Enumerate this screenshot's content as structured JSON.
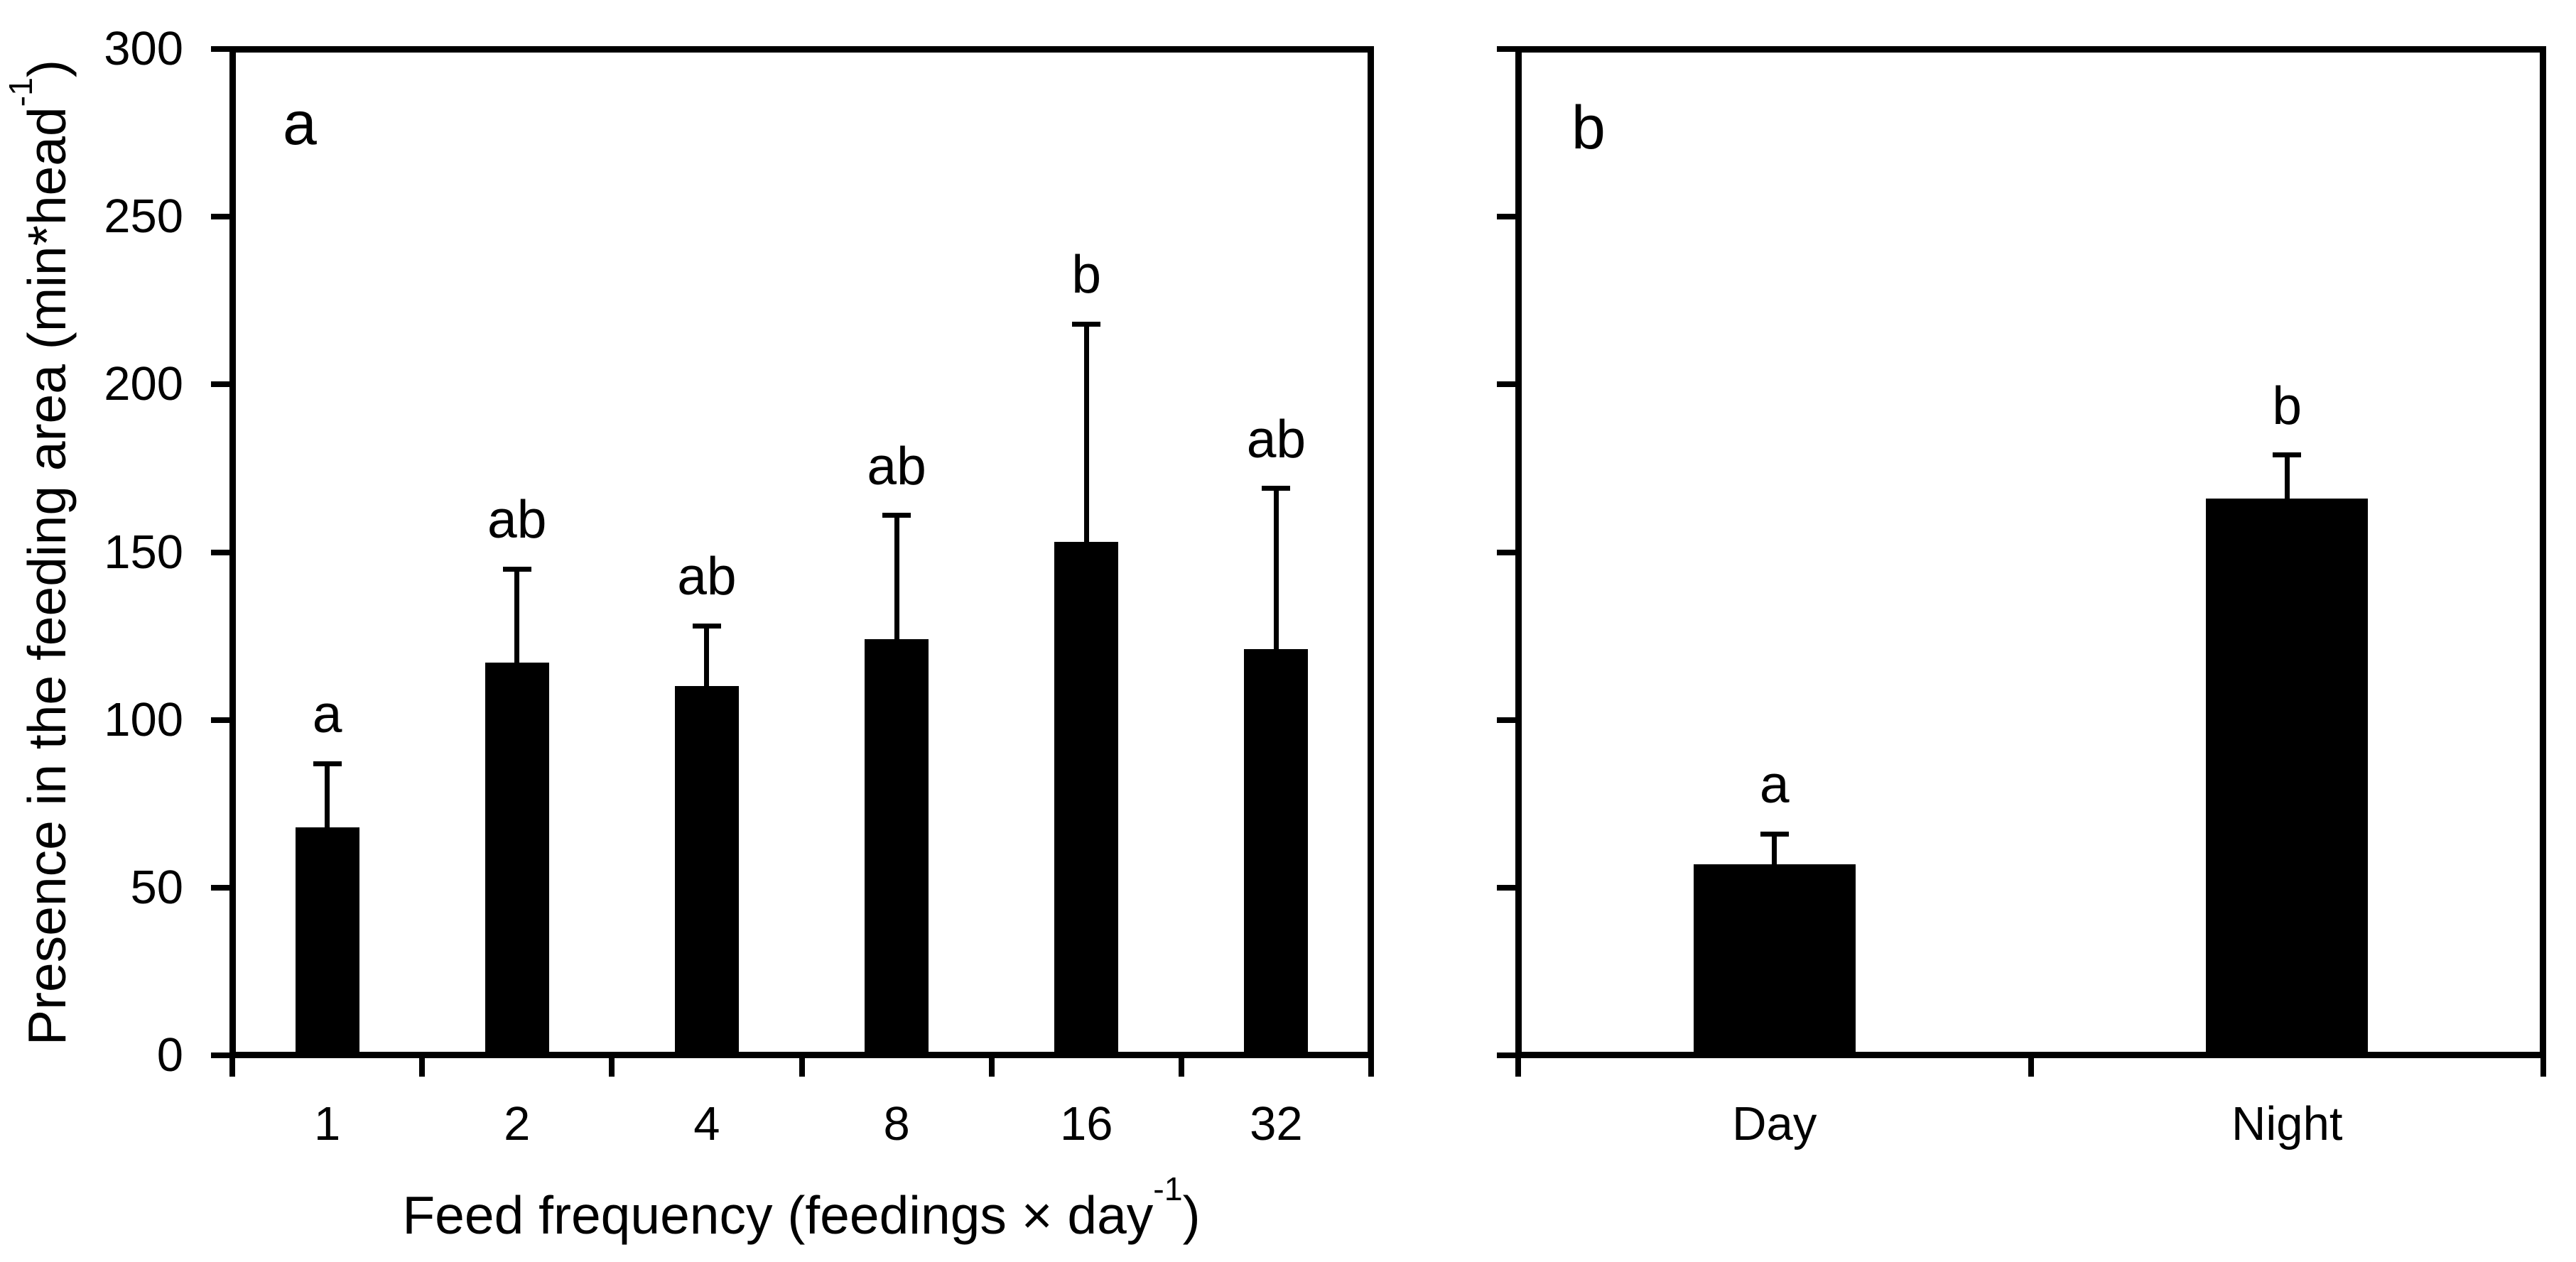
{
  "figure": {
    "background_color": "#ffffff",
    "ink_color": "#000000",
    "y_axis": {
      "label_prefix": "Presence in the feeding area (min*head",
      "label_superscript": "-1",
      "label_suffix": ")",
      "tick_labels_top_to_bottom": [
        "300",
        "250",
        "200",
        "150",
        "100",
        "50",
        "0"
      ],
      "tick_values_top_to_bottom": [
        300,
        250,
        200,
        150,
        100,
        50,
        0
      ]
    }
  },
  "chart_data": [
    {
      "type": "bar",
      "panel_letter": "a",
      "categories": [
        "1",
        "2",
        "4",
        "8",
        "16",
        "32"
      ],
      "values": [
        68,
        117,
        110,
        124,
        153,
        121
      ],
      "upper_errors": [
        19,
        28,
        18,
        37,
        65,
        48
      ],
      "error_tops": [
        87,
        145,
        128,
        161,
        218,
        169
      ],
      "sig_letters": [
        "a",
        "ab",
        "ab",
        "ab",
        "b",
        "ab"
      ],
      "xlabel_prefix": "Feed frequency (feedings × day",
      "xlabel_superscript": "-1",
      "xlabel_suffix": ")",
      "ylabel": "Presence in the feeding area (min*head-1)",
      "ylim": [
        0,
        300
      ],
      "ytick_step": 50,
      "ytick_labels_shown": true,
      "grid": false,
      "legend": false,
      "bar_color": "#000000"
    },
    {
      "type": "bar",
      "panel_letter": "b",
      "categories": [
        "Day",
        "Night"
      ],
      "values": [
        57,
        166
      ],
      "upper_errors": [
        9,
        13
      ],
      "error_tops": [
        66,
        179
      ],
      "sig_letters": [
        "a",
        "b"
      ],
      "xlabel_prefix": "",
      "xlabel_superscript": "",
      "xlabel_suffix": "",
      "ylabel": "",
      "ylim": [
        0,
        300
      ],
      "ytick_step": 50,
      "ytick_labels_shown": false,
      "grid": false,
      "legend": false,
      "bar_color": "#000000"
    }
  ]
}
